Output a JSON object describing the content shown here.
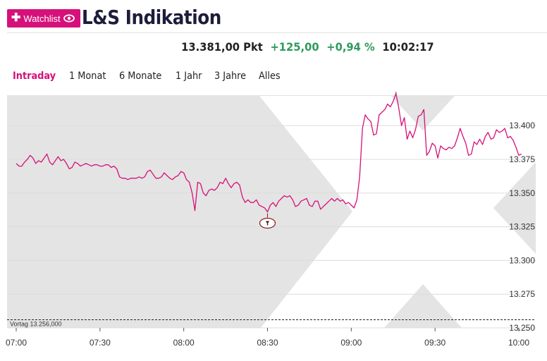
{
  "header": {
    "watchlist_label": "Watchlist",
    "title": "L&S Indikation"
  },
  "quote": {
    "price": "13.381,00 Pkt",
    "change_abs": "+125,00",
    "change_pct": "+0,94 %",
    "time": "10:02:17"
  },
  "tabs": [
    {
      "label": "Intraday",
      "active": true
    },
    {
      "label": "1 Monat",
      "active": false
    },
    {
      "label": "6 Monate",
      "active": false
    },
    {
      "label": "1 Jahr",
      "active": false
    },
    {
      "label": "3 Jahre",
      "active": false
    },
    {
      "label": "Alles",
      "active": false
    }
  ],
  "colors": {
    "accent": "#d6107a",
    "positive": "#2e9a5e",
    "watermark": "#e4e4e4"
  },
  "chart_data": {
    "type": "line",
    "x_ticks": [
      "07:00",
      "07:30",
      "08:00",
      "08:30",
      "09:00",
      "09:30",
      "10:00"
    ],
    "y_ticks": [
      "13.250",
      "13.275",
      "13.300",
      "13.325",
      "13.350",
      "13.375",
      "13.400"
    ],
    "ylim": [
      13250,
      13420
    ],
    "xlim_minutes": [
      0,
      182
    ],
    "grid": true,
    "previous_close": {
      "value": 13256,
      "label": "Vortag 13.256,000"
    },
    "marker": {
      "x_minutes": 90,
      "value": 13335
    },
    "series": [
      {
        "x_minutes": [
          0,
          1,
          2,
          3,
          4,
          5,
          6,
          7,
          8,
          9,
          10,
          11,
          12,
          13,
          14,
          15,
          16,
          17,
          18,
          19,
          20,
          21,
          22,
          23,
          24,
          25,
          26,
          27,
          28,
          29,
          30,
          31,
          32,
          33,
          34,
          35,
          36,
          37,
          38,
          39,
          40,
          41,
          42,
          43,
          44,
          45,
          46,
          47,
          48,
          49,
          50,
          51,
          52,
          53,
          54,
          55,
          56,
          57,
          58,
          59,
          60,
          61,
          62,
          63,
          64,
          65,
          66,
          67,
          68,
          69,
          70,
          71,
          72,
          73,
          74,
          75,
          76,
          77,
          78,
          79,
          80,
          81,
          82,
          83,
          84,
          85,
          86,
          87,
          88,
          89,
          90,
          91,
          92,
          93,
          94,
          95,
          96,
          97,
          98,
          99,
          100,
          101,
          102,
          103,
          104,
          105,
          106,
          107,
          108,
          109,
          110,
          111,
          112,
          113,
          114,
          115,
          116,
          117,
          118,
          119,
          120,
          121,
          122,
          123,
          124,
          125,
          126,
          127,
          128,
          129,
          130,
          131,
          132,
          133,
          134,
          135,
          136,
          137,
          138,
          139,
          140,
          141,
          142,
          143,
          144,
          145,
          146,
          147,
          148,
          149,
          150,
          151,
          152,
          153,
          154,
          155,
          156,
          157,
          158,
          159,
          160,
          161,
          162,
          163,
          164,
          165,
          166,
          167,
          168,
          169,
          170,
          171,
          172,
          173,
          174,
          175,
          176,
          177,
          178,
          179,
          180,
          181
        ],
        "values": [
          13372,
          13370,
          13370,
          13373,
          13375,
          13378,
          13376,
          13372,
          13374,
          13373,
          13376,
          13379,
          13373,
          13371,
          13374,
          13377,
          13374,
          13375,
          13372,
          13368,
          13369,
          13373,
          13372,
          13370,
          13371,
          13372,
          13371,
          13370,
          13371,
          13371,
          13370,
          13370,
          13371,
          13371,
          13369,
          13370,
          13368,
          13362,
          13361,
          13361,
          13360,
          13361,
          13361,
          13361,
          13362,
          13361,
          13362,
          13366,
          13367,
          13364,
          13361,
          13361,
          13362,
          13365,
          13363,
          13361,
          13360,
          13362,
          13363,
          13366,
          13365,
          13360,
          13358,
          13350,
          13337,
          13358,
          13357,
          13350,
          13348,
          13352,
          13353,
          13352,
          13354,
          13358,
          13357,
          13361,
          13357,
          13354,
          13357,
          13358,
          13356,
          13347,
          13343,
          13345,
          13343,
          13343,
          13345,
          13341,
          13340,
          13339,
          13336,
          13341,
          13343,
          13340,
          13344,
          13346,
          13348,
          13347,
          13348,
          13345,
          13340,
          13341,
          13344,
          13345,
          13346,
          13341,
          13340,
          13344,
          13344,
          13338,
          13340,
          13342,
          13344,
          13346,
          13344,
          13346,
          13344,
          13345,
          13342,
          13343,
          13341,
          13339,
          13345,
          13362,
          13398,
          13408,
          13405,
          13403,
          13393,
          13394,
          13408,
          13410,
          13412,
          13416,
          13414,
          13418,
          13424,
          13413,
          13400,
          13406,
          13390,
          13396,
          13391,
          13397,
          13407,
          13408,
          13412,
          13378,
          13381,
          13387,
          13385,
          13376,
          13385,
          13383,
          13382,
          13384,
          13383,
          13385,
          13391,
          13398,
          13392,
          13387,
          13378,
          13379,
          13388,
          13386,
          13390,
          13386,
          13392,
          13395,
          13390,
          13391,
          13397,
          13395,
          13396,
          13398,
          13391,
          13392,
          13389,
          13384,
          13378,
          13379
        ]
      }
    ]
  }
}
